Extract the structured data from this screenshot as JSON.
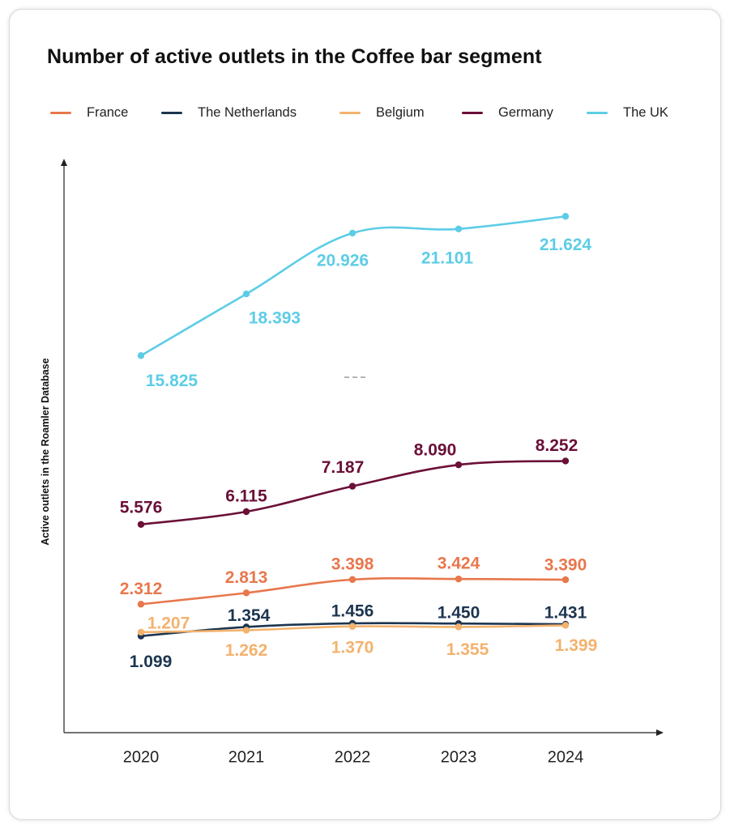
{
  "chart_data": {
    "type": "line",
    "title": "Number of active outlets in the Coffee bar segment",
    "ylabel": "Active outlets in the Roamler Database",
    "xlabel": "",
    "categories": [
      "2020",
      "2021",
      "2022",
      "2023",
      "2024"
    ],
    "legend_position": "top",
    "grid": false,
    "smooth": true,
    "series": [
      {
        "name": "France",
        "color": "#e8774c",
        "values": [
          2312,
          2813,
          3398,
          3424,
          3390
        ],
        "labels": [
          "2.312",
          "2.813",
          "3.398",
          "3.424",
          "3.390"
        ]
      },
      {
        "name": "The Netherlands",
        "color": "#1c3550",
        "values": [
          1099,
          1354,
          1456,
          1450,
          1431
        ],
        "labels": [
          "1.099",
          "1.354",
          "1.456",
          "1.450",
          "1.431"
        ]
      },
      {
        "name": "Belgium",
        "color": "#f3b26e",
        "values": [
          1207,
          1262,
          1370,
          1355,
          1399
        ],
        "labels": [
          "1.207",
          "1.262",
          "1.370",
          "1.355",
          "1.399"
        ]
      },
      {
        "name": "Germany",
        "color": "#6b1038",
        "values": [
          5576,
          6115,
          7187,
          8090,
          8252
        ],
        "labels": [
          "5.576",
          "6.115",
          "7.187",
          "8.090",
          "8.252"
        ]
      },
      {
        "name": "The UK",
        "color": "#5dcde6",
        "values": [
          15825,
          18393,
          20926,
          21101,
          21624
        ],
        "labels": [
          "15.825",
          "18.393",
          "20.926",
          "21.101",
          "21.624"
        ]
      }
    ]
  }
}
